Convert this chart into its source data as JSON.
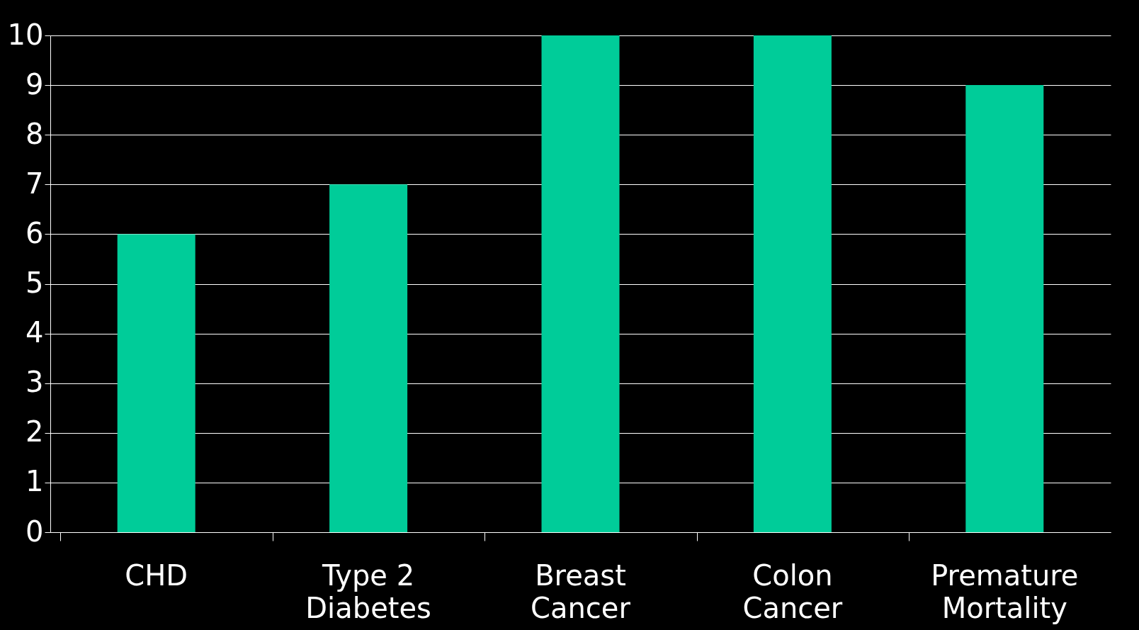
{
  "chart_data": {
    "type": "bar",
    "categories": [
      "CHD",
      "Type 2\nDiabetes",
      "Breast\nCancer",
      "Colon\nCancer",
      "Premature\nMortality"
    ],
    "values": [
      6,
      7,
      10,
      10,
      9
    ],
    "color": "#00cc99",
    "ylim": [
      0,
      10
    ],
    "yticks": [
      0,
      1,
      2,
      3,
      4,
      5,
      6,
      7,
      8,
      9,
      10
    ],
    "grid": "y"
  }
}
